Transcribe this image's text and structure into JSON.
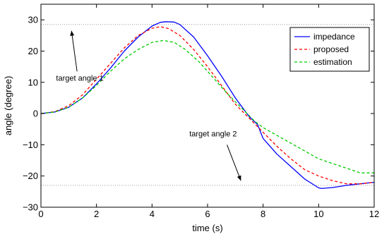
{
  "chart_data": {
    "type": "line",
    "xlabel": "time (s)",
    "ylabel": "angle (degree)",
    "xlim": [
      0,
      12
    ],
    "ylim": [
      -30,
      35
    ],
    "xticks": [
      0,
      2,
      4,
      6,
      8,
      10,
      12
    ],
    "yticks": [
      -30,
      -20,
      -10,
      0,
      10,
      20,
      30
    ],
    "grid": false,
    "legend_position": "top-right",
    "series": [
      {
        "name": "impedance",
        "color": "#0000ff",
        "dash": "solid",
        "x": [
          0,
          0.5,
          1,
          1.5,
          2,
          2.5,
          3,
          3.5,
          4,
          4.3,
          4.5,
          4.8,
          5,
          5.5,
          6,
          6.5,
          7,
          7.5,
          7.8,
          8,
          8.5,
          9,
          9.5,
          10,
          10.1,
          10.5,
          11,
          11.5,
          12
        ],
        "y": [
          0,
          0.5,
          2,
          5,
          9.5,
          14.5,
          20,
          24.5,
          28,
          29.2,
          29.4,
          29.3,
          28.5,
          24.5,
          18.5,
          12,
          5,
          -1,
          -3.5,
          -8,
          -13,
          -17,
          -21,
          -23.8,
          -24,
          -23.7,
          -23,
          -22.5,
          -22
        ]
      },
      {
        "name": "proposed",
        "color": "#ff0000",
        "dash": "4,3",
        "x": [
          0,
          0.5,
          1,
          1.5,
          2,
          2.5,
          3,
          3.5,
          4,
          4.3,
          4.6,
          5,
          5.5,
          6,
          6.5,
          7,
          7.5,
          8,
          8.5,
          9,
          9.5,
          10,
          10.5,
          11,
          11.5,
          12
        ],
        "y": [
          0,
          0.6,
          2.5,
          6,
          11,
          16,
          21,
          25,
          27.3,
          27.8,
          27.2,
          25,
          20.5,
          15,
          9,
          3,
          -1.5,
          -6,
          -10.5,
          -14.5,
          -18,
          -20,
          -21.5,
          -22.5,
          -22.5,
          -22
        ]
      },
      {
        "name": "estimation",
        "color": "#00cc00",
        "dash": "4,3",
        "x": [
          0,
          0.5,
          1,
          1.5,
          2,
          2.5,
          3,
          3.5,
          4,
          4.4,
          4.8,
          5.2,
          5.7,
          6.2,
          6.7,
          7.2,
          7.7,
          8,
          8.5,
          9,
          9.5,
          10,
          10.5,
          11,
          11.5,
          12
        ],
        "y": [
          0,
          0.5,
          2,
          5,
          9,
          13.5,
          17.5,
          20.5,
          22.8,
          23.4,
          22.8,
          20.5,
          16.5,
          11.5,
          6.5,
          2,
          -2.5,
          -4.5,
          -7,
          -9.5,
          -12,
          -14.5,
          -16,
          -17.5,
          -19,
          -19
        ]
      }
    ],
    "reference_lines": [
      {
        "y": 28.5,
        "color": "#999999"
      },
      {
        "y": -23,
        "color": "#999999"
      }
    ],
    "annotations": [
      {
        "text": "target angle 1",
        "text_x": 1.4,
        "text_y": 10.5,
        "arrow_from": [
          1.3,
          13.5
        ],
        "arrow_to": [
          1.1,
          26.5
        ]
      },
      {
        "text": "target angle 2",
        "text_x": 6.2,
        "text_y": -7.3,
        "arrow_from": [
          6.7,
          -10
        ],
        "arrow_to": [
          7.2,
          -21.5
        ]
      }
    ]
  }
}
